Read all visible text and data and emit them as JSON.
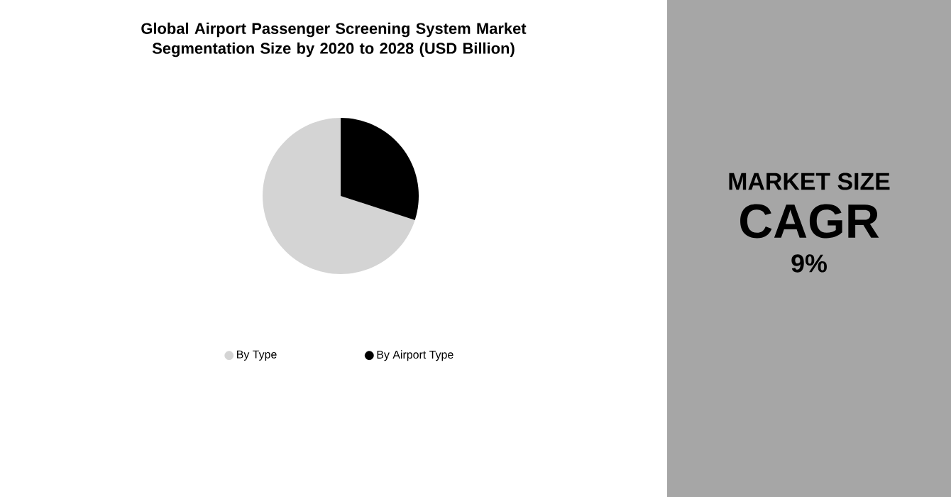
{
  "chart_data": [
    {
      "type": "pie",
      "title": "Global Airport Passenger Screening System Market Segmentation Size by 2020 to 2028 (USD Billion)",
      "categories": [
        "By Type",
        "By Airport Type"
      ],
      "values": [
        70,
        30
      ],
      "colors": [
        "#d4d4d4",
        "#000000"
      ],
      "legend": "bottom"
    },
    {
      "type": "other",
      "title": "MARKET SIZE",
      "subtitle": "CAGR",
      "annotations": [
        "9%"
      ]
    }
  ]
}
